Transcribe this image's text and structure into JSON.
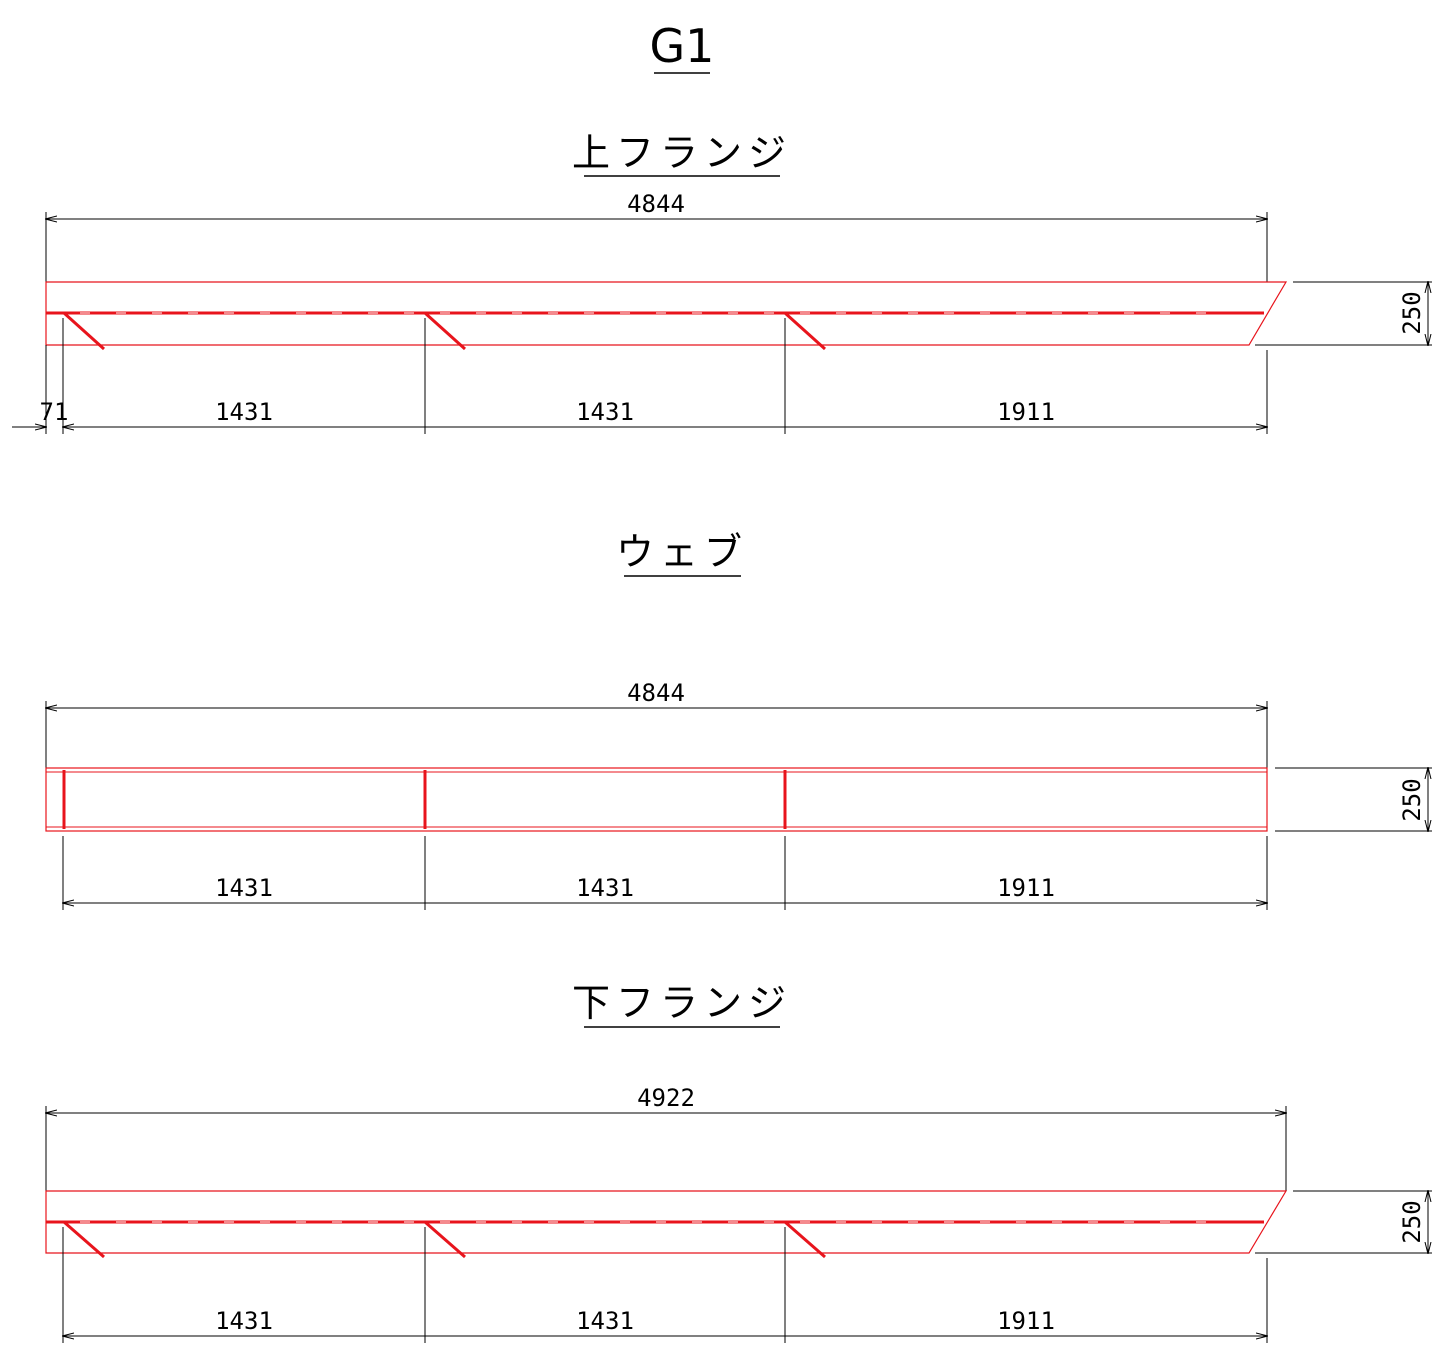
{
  "drawing_title": "G1",
  "sections": [
    {
      "id": "top-flange",
      "title": "上フランジ",
      "overall_length": "4844",
      "height": "250",
      "offset_dim": "71",
      "spacing_dims": [
        "1431",
        "1431",
        "1911"
      ]
    },
    {
      "id": "web",
      "title": "ウェブ",
      "overall_length": "4844",
      "height": "250",
      "spacing_dims": [
        "1431",
        "1431",
        "1911"
      ]
    },
    {
      "id": "bottom-flange",
      "title": "下フランジ",
      "overall_length": "4922",
      "height": "250",
      "spacing_dims": [
        "1431",
        "1431",
        "1911"
      ]
    }
  ],
  "colors": {
    "outline": "#e8141c",
    "dimension": "#000000",
    "background": "#ffffff"
  }
}
